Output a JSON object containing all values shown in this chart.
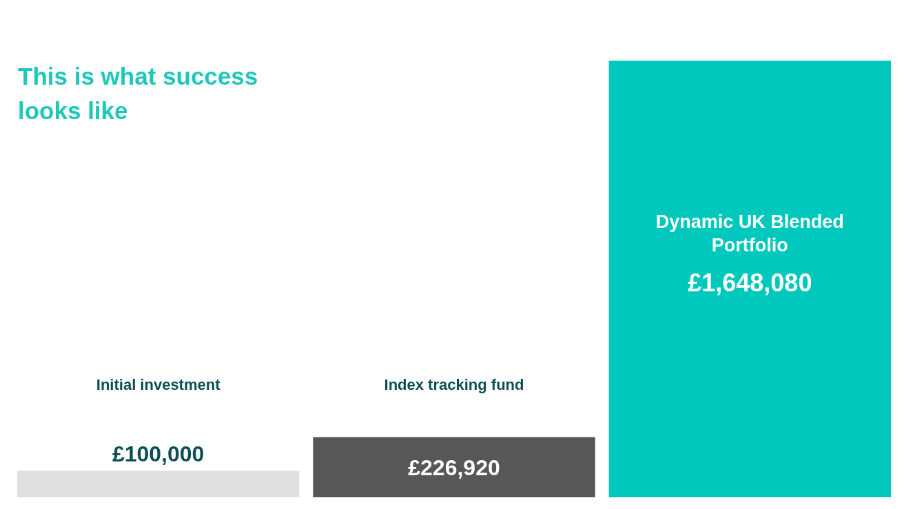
{
  "chart_data": {
    "type": "bar",
    "title": "This is what success looks like",
    "categories": [
      "Initial investment",
      "Index tracking fund",
      "Dynamic UK Blended Portfolio"
    ],
    "values": [
      100000,
      226920,
      1648080
    ],
    "colors": [
      "#e0e0e0",
      "#555759",
      "#00c8bc"
    ],
    "value_labels": [
      "£100,000",
      "£226,920",
      "£1,648,080"
    ]
  }
}
